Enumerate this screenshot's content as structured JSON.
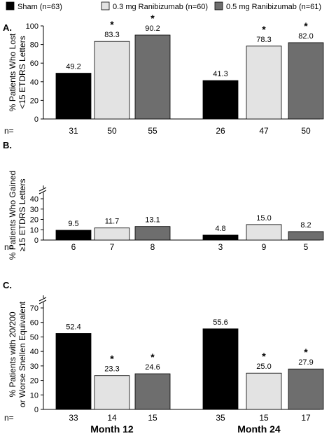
{
  "legend": [
    {
      "label": "Sham (n=63)",
      "color": "#000000"
    },
    {
      "label": "0.3 mg Ranibizumab (n=60)",
      "color": "#e3e3e3"
    },
    {
      "label": "0.5 mg Ranibizumab (n=61)",
      "color": "#6e6e6e"
    }
  ],
  "n_label": "n=",
  "month_labels": [
    "Month 12",
    "Month 24"
  ],
  "chart_data": [
    {
      "type": "bar",
      "panel_label": "A.",
      "ylabel_lines": [
        "% Patients Who Lost",
        "<15 ETDRS Letters"
      ],
      "ylim": [
        0,
        100
      ],
      "yticks": [
        0,
        20,
        40,
        60,
        80,
        100
      ],
      "axis_break": false,
      "categories": [
        "Month 12",
        "Month 24"
      ],
      "series": [
        {
          "name": "Sham (n=63)",
          "values": [
            49.2,
            41.3
          ],
          "labels": [
            "49.2",
            "41.3"
          ],
          "n": [
            "31",
            "26"
          ],
          "star": [
            false,
            false
          ]
        },
        {
          "name": "0.3 mg Ranibizumab (n=60)",
          "values": [
            83.3,
            78.3
          ],
          "labels": [
            "83.3",
            "78.3"
          ],
          "n": [
            "50",
            "47"
          ],
          "star": [
            true,
            true
          ]
        },
        {
          "name": "0.5 mg Ranibizumab (n=61)",
          "values": [
            90.2,
            82.0
          ],
          "labels": [
            "90.2",
            "82.0"
          ],
          "n": [
            "55",
            "50"
          ],
          "star": [
            true,
            true
          ]
        }
      ]
    },
    {
      "type": "bar",
      "panel_label": "B.",
      "ylabel_lines": [
        "% Patients Who Gained",
        "≥15 ETDRS Letters"
      ],
      "ylim": [
        0,
        40
      ],
      "yticks": [
        0,
        10,
        20,
        30,
        40
      ],
      "axis_break": true,
      "categories": [
        "Month 12",
        "Month 24"
      ],
      "series": [
        {
          "name": "Sham (n=63)",
          "values": [
            9.5,
            4.8
          ],
          "labels": [
            "9.5",
            "4.8"
          ],
          "n": [
            "6",
            "3"
          ],
          "star": [
            false,
            false
          ]
        },
        {
          "name": "0.3 mg Ranibizumab (n=60)",
          "values": [
            11.7,
            15.0
          ],
          "labels": [
            "11.7",
            "15.0"
          ],
          "n": [
            "7",
            "9"
          ],
          "star": [
            false,
            false
          ]
        },
        {
          "name": "0.5 mg Ranibizumab (n=61)",
          "values": [
            13.1,
            8.2
          ],
          "labels": [
            "13.1",
            "8.2"
          ],
          "n": [
            "8",
            "5"
          ],
          "star": [
            false,
            false
          ]
        }
      ]
    },
    {
      "type": "bar",
      "panel_label": "C.",
      "ylabel_lines": [
        "% Patients with 20/200",
        "or Worse Snellen Equivalent"
      ],
      "ylim": [
        0,
        70
      ],
      "yticks": [
        0,
        10,
        20,
        30,
        40,
        50,
        60,
        70
      ],
      "axis_break": true,
      "categories": [
        "Month 12",
        "Month 24"
      ],
      "series": [
        {
          "name": "Sham (n=63)",
          "values": [
            52.4,
            55.6
          ],
          "labels": [
            "52.4",
            "55.6"
          ],
          "n": [
            "33",
            "35"
          ],
          "star": [
            false,
            false
          ]
        },
        {
          "name": "0.3 mg Ranibizumab (n=60)",
          "values": [
            23.3,
            25.0
          ],
          "labels": [
            "23.3",
            "25.0"
          ],
          "n": [
            "14",
            "15"
          ],
          "star": [
            true,
            true
          ]
        },
        {
          "name": "0.5 mg Ranibizumab (n=61)",
          "values": [
            24.6,
            27.9
          ],
          "labels": [
            "24.6",
            "27.9"
          ],
          "n": [
            "15",
            "17"
          ],
          "star": [
            true,
            true
          ]
        }
      ]
    }
  ]
}
